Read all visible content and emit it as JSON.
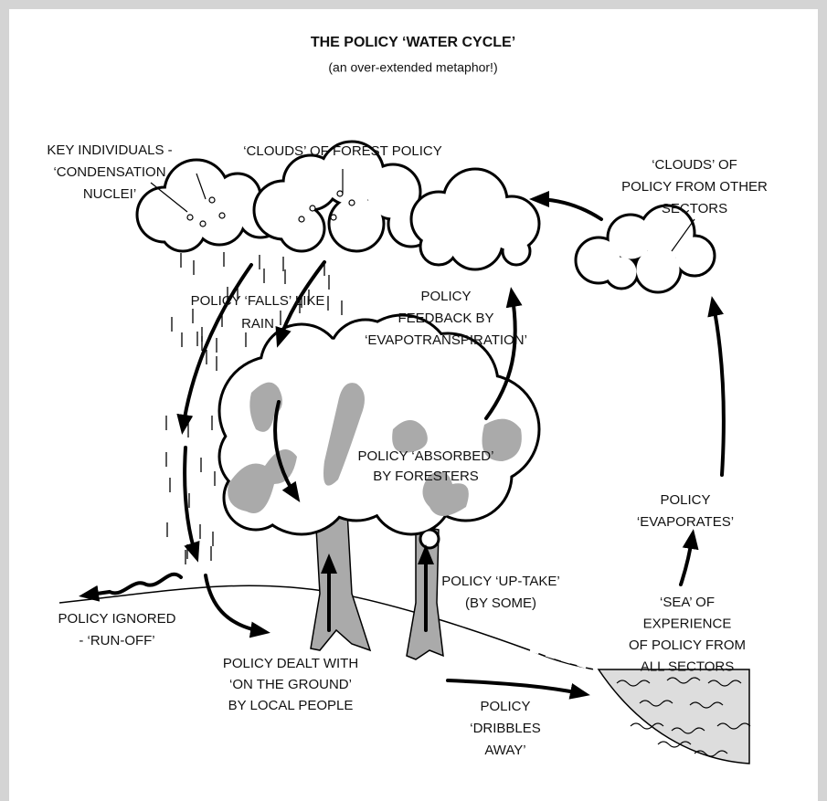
{
  "title": "THE POLICY ‘WATER CYCLE’",
  "subtitle": "(an over-extended metaphor!)",
  "labels": [
    {
      "lines": [
        "KEY INDIVIDUALS -",
        "‘CONDENSATION",
        "NUCLEI’"
      ]
    },
    {
      "lines": [
        "‘CLOUDS’ OF FOREST POLICY"
      ]
    },
    {
      "lines": [
        "‘CLOUDS’ OF",
        "POLICY FROM OTHER",
        "SECTORS"
      ]
    },
    {
      "lines": [
        "POLICY ‘FALLS’ LIKE",
        "RAIN"
      ]
    },
    {
      "lines": [
        "POLICY",
        "FEEDBACK BY",
        "‘EVAPOTRANSPIRATION’"
      ]
    },
    {
      "lines": [
        "POLICY ‘ABSORBED’",
        "BY FORESTERS"
      ]
    },
    {
      "lines": [
        "POLICY",
        "‘EVAPORATES’"
      ]
    },
    {
      "lines": [
        "POLICY ‘UP-TAKE’",
        "(BY SOME)"
      ]
    },
    {
      "lines": [
        "‘SEA’ OF",
        "EXPERIENCE",
        "OF POLICY FROM",
        "ALL SECTORS"
      ]
    },
    {
      "lines": [
        "POLICY IGNORED",
        "- ‘RUN-OFF’"
      ]
    },
    {
      "lines": [
        "POLICY DEALT WITH",
        "‘ON THE GROUND’",
        "BY LOCAL PEOPLE"
      ]
    },
    {
      "lines": [
        "POLICY",
        "‘DRIBBLES",
        "AWAY’"
      ]
    }
  ]
}
